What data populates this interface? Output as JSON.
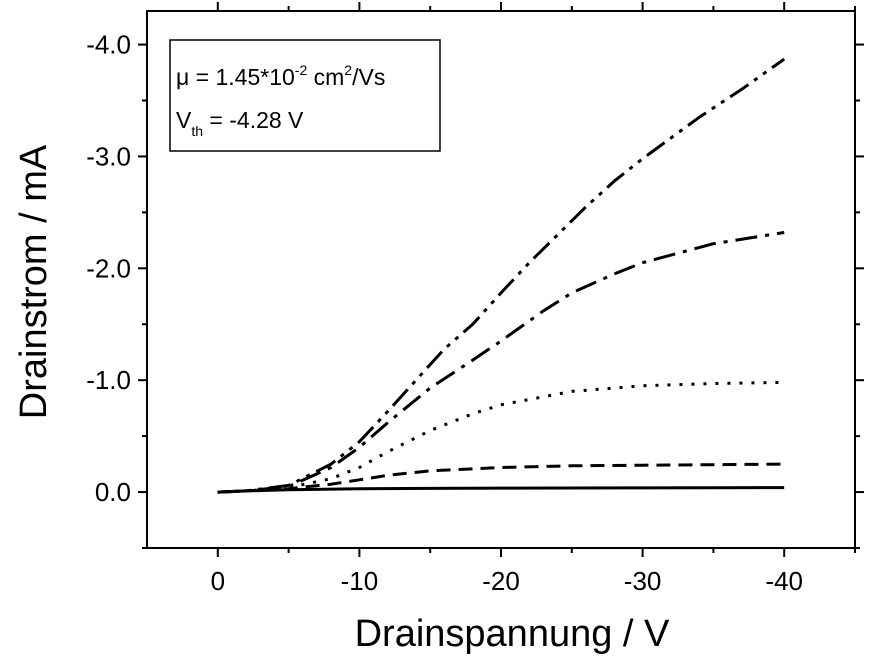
{
  "chart_data": {
    "type": "line",
    "xlabel": "Drainspannung / V",
    "ylabel": "Drainstrom / mA",
    "xlim": [
      5,
      -45
    ],
    "ylim": [
      0.5,
      -4.3
    ],
    "x_ticks": [
      0,
      -10,
      -20,
      -30,
      -40
    ],
    "x_tick_labels": [
      "0",
      "-10",
      "-20",
      "-30",
      "-40"
    ],
    "y_ticks": [
      0.0,
      -1.0,
      -2.0,
      -3.0,
      -4.0
    ],
    "y_tick_labels": [
      "0.0",
      "-1.0",
      "-2.0",
      "-3.0",
      "-4.0"
    ],
    "grid": false,
    "annotation": {
      "mu_symbol": "μ",
      "mu_value_prefix": " = 1.45*10",
      "mu_exponent": "-2",
      "mu_unit_prefix": " cm",
      "mu_unit_exponent": "2",
      "mu_unit_suffix": "/Vs",
      "vth_symbol": "V",
      "vth_subscript": "th",
      "vth_value": " = -4.28 V"
    },
    "series": [
      {
        "style": "solid",
        "x": [
          0,
          -2,
          -5,
          -10,
          -15,
          -20,
          -25,
          -30,
          -35,
          -40
        ],
        "y": [
          0,
          -0.01,
          -0.02,
          -0.03,
          -0.033,
          -0.035,
          -0.036,
          -0.037,
          -0.038,
          -0.04
        ]
      },
      {
        "style": "dashed",
        "x": [
          0,
          -2,
          -5,
          -8,
          -10,
          -12,
          -15,
          -20,
          -25,
          -30,
          -35,
          -40
        ],
        "y": [
          0,
          -0.01,
          -0.03,
          -0.07,
          -0.11,
          -0.15,
          -0.19,
          -0.22,
          -0.235,
          -0.24,
          -0.245,
          -0.25
        ]
      },
      {
        "style": "dotted",
        "x": [
          0,
          -2,
          -5,
          -8,
          -10,
          -12,
          -15,
          -18,
          -20,
          -25,
          -30,
          -35,
          -40
        ],
        "y": [
          0,
          -0.01,
          -0.04,
          -0.12,
          -0.22,
          -0.36,
          -0.55,
          -0.7,
          -0.78,
          -0.9,
          -0.95,
          -0.97,
          -0.98
        ]
      },
      {
        "style": "dash-dot",
        "x": [
          0,
          -2,
          -5,
          -8,
          -10,
          -12,
          -15,
          -18,
          -20,
          -23,
          -25,
          -28,
          -30,
          -35,
          -40
        ],
        "y": [
          0,
          -0.01,
          -0.05,
          -0.22,
          -0.4,
          -0.62,
          -0.93,
          -1.18,
          -1.35,
          -1.62,
          -1.78,
          -1.95,
          -2.05,
          -2.22,
          -2.32
        ]
      },
      {
        "style": "dash-dot-dot",
        "x": [
          0,
          -2,
          -5,
          -8,
          -10,
          -12,
          -14,
          -16,
          -18,
          -20,
          -22,
          -24,
          -26,
          -28,
          -30,
          -34,
          -37,
          -40
        ],
        "y": [
          0,
          -0.01,
          -0.06,
          -0.25,
          -0.45,
          -0.72,
          -1.0,
          -1.28,
          -1.5,
          -1.78,
          -2.05,
          -2.3,
          -2.55,
          -2.78,
          -2.98,
          -3.35,
          -3.6,
          -3.87
        ]
      }
    ]
  }
}
